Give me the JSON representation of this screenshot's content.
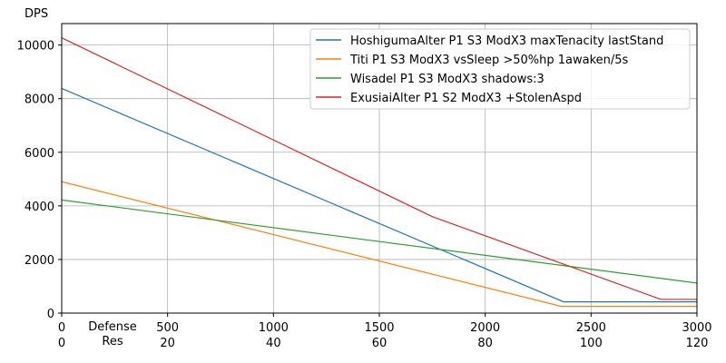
{
  "chart_data": {
    "type": "line",
    "ylabel": "DPS",
    "xlabel": "Defense",
    "x2label": "Res",
    "xlim": [
      0,
      3000
    ],
    "ylim": [
      0,
      10800
    ],
    "xticks": [
      0,
      500,
      1000,
      1500,
      2000,
      2500,
      3000
    ],
    "xticks_res": [
      0,
      20,
      40,
      60,
      80,
      100,
      120
    ],
    "yticks": [
      0,
      2000,
      4000,
      6000,
      8000,
      10000
    ],
    "grid": true,
    "legend_position": "top-right",
    "series": [
      {
        "name": "HoshigumaAlter P1 S3 ModX3 maxTenacity lastStand",
        "color": "#1f77b4",
        "x": [
          0,
          2370,
          3000
        ],
        "y": [
          8380,
          420,
          420
        ]
      },
      {
        "name": "Titi P1 S3 ModX3 vsSleep >50%hp 1awaken/5s",
        "color": "#ff7f0e",
        "x": [
          0,
          2360,
          3000
        ],
        "y": [
          4900,
          250,
          250
        ]
      },
      {
        "name": "Wisadel P1 S3 ModX3 shadows:3",
        "color": "#2ca02c",
        "x": [
          0,
          3000
        ],
        "y": [
          4220,
          1120
        ]
      },
      {
        "name": "ExusiaiAlter P1 S2 ModX3 +StolenAspd",
        "color": "#d62728",
        "x": [
          0,
          1750,
          2830,
          3000
        ],
        "y": [
          10270,
          3600,
          510,
          510
        ]
      }
    ]
  }
}
